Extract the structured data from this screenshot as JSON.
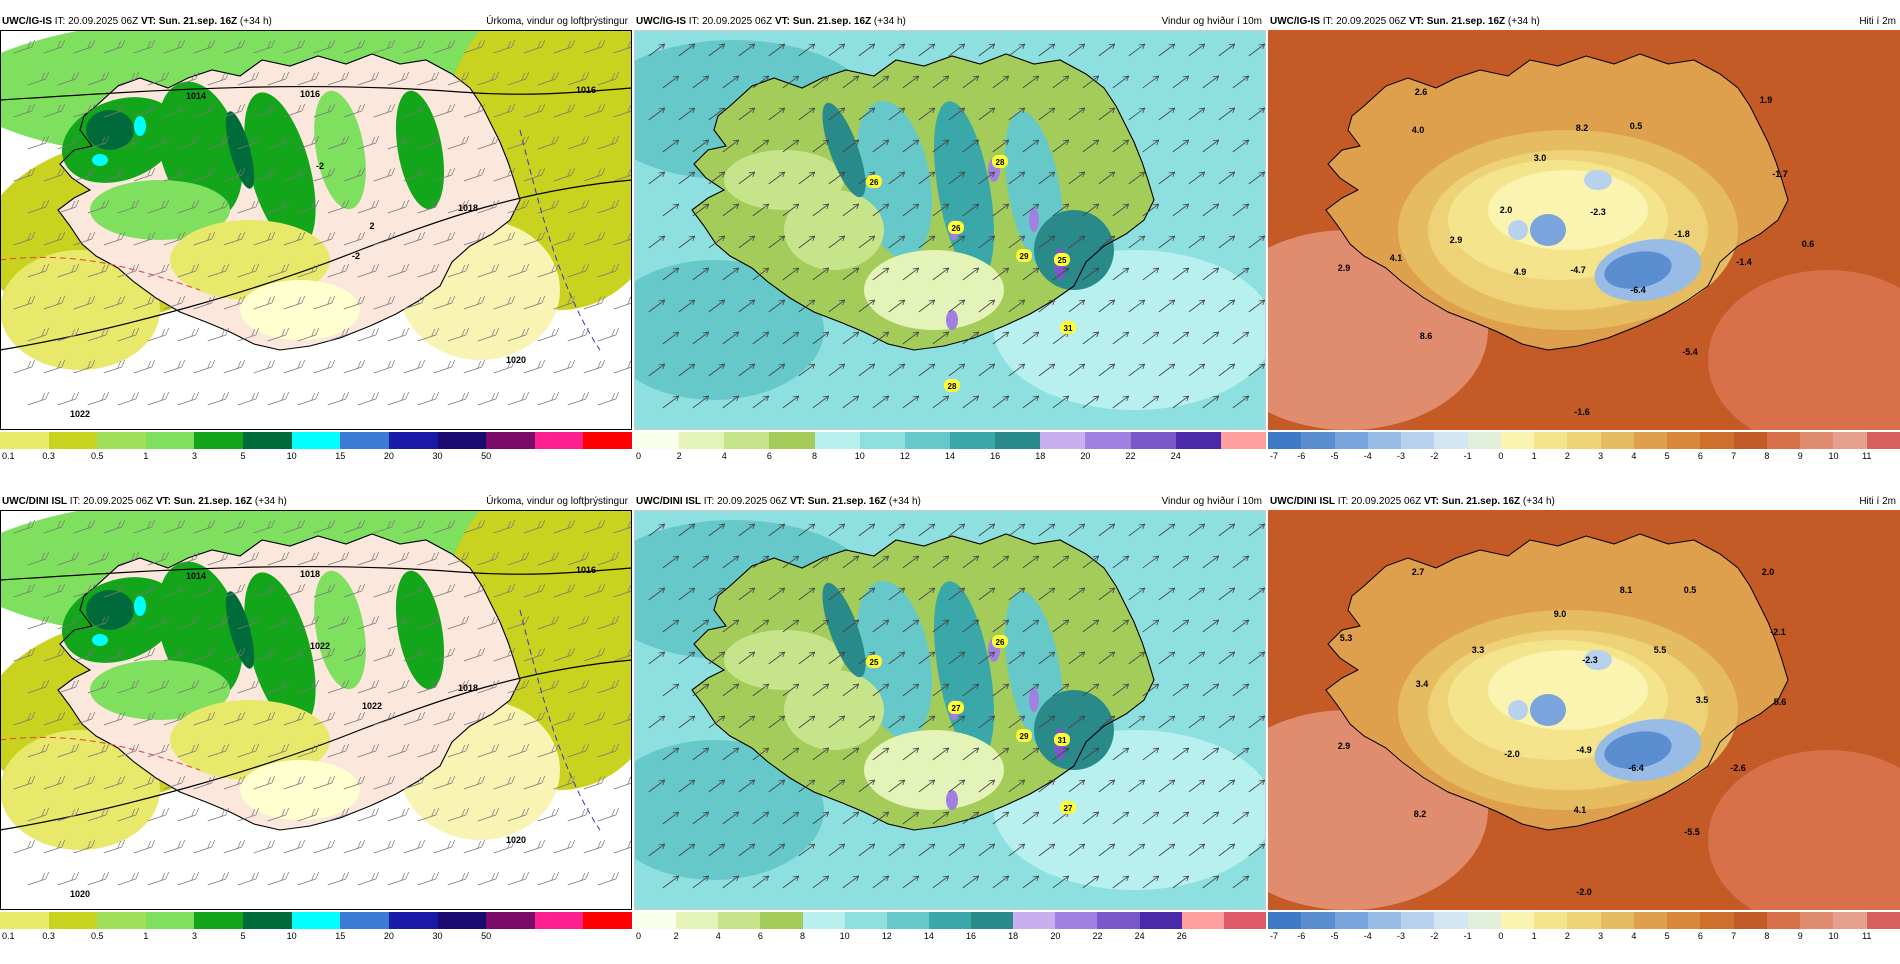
{
  "rows": [
    {
      "model": "UWC/IG-IS",
      "issue": "IT: 20.09.2025 06Z",
      "valid": "VT: Sun. 21.sep. 16Z",
      "lead": "(+34 h)"
    },
    {
      "model": "UWC/DINI ISL",
      "issue": "IT: 20.09.2025 06Z",
      "valid": "VT: Sun. 21.sep. 16Z",
      "lead": "(+34 h)"
    }
  ],
  "params": {
    "precip": "Úrkoma, vindur og loftþrýstingur",
    "wind": "Vindur og hviður í 10m",
    "temp": "Hiti í 2m"
  },
  "legends": {
    "precip": {
      "colors": [
        "#e8e86a",
        "#c9d21e",
        "#a2df5a",
        "#7ee05e",
        "#13a51a",
        "#006b3a",
        "#00ffff",
        "#3a7bd5",
        "#1a1aa8",
        "#1a0a70",
        "#7a0a6a",
        "#ff1f8f",
        "#ff0000"
      ],
      "ticks": [
        "0.1",
        "0.3",
        "0.5",
        "1",
        "3",
        "5",
        "10",
        "15",
        "20",
        "30",
        "50"
      ]
    },
    "wind_top": {
      "colors": [
        "#f8ffe8",
        "#e4f4b8",
        "#c6e48a",
        "#a3cc5a",
        "#b8f0f0",
        "#8ee0e0",
        "#66c8c8",
        "#3aa8a8",
        "#2a8a8a",
        "#c8b0f0",
        "#a080e0",
        "#7a58c8",
        "#4a2aa8",
        "#ff9e9e"
      ],
      "ticks": [
        "0",
        "2",
        "4",
        "6",
        "8",
        "10",
        "12",
        "14",
        "16",
        "18",
        "20",
        "22",
        "24"
      ]
    },
    "wind_bot": {
      "colors": [
        "#f8ffe8",
        "#e4f4b8",
        "#c6e48a",
        "#a3cc5a",
        "#b8f0f0",
        "#8ee0e0",
        "#66c8c8",
        "#3aa8a8",
        "#2a8a8a",
        "#c8b0f0",
        "#a080e0",
        "#7a58c8",
        "#4a2aa8",
        "#ff9e9e",
        "#e05a6a"
      ],
      "ticks": [
        "0",
        "2",
        "4",
        "6",
        "8",
        "10",
        "12",
        "14",
        "16",
        "18",
        "20",
        "22",
        "24",
        "26"
      ]
    },
    "temp": {
      "colors": [
        "#3f78c4",
        "#5a8ed0",
        "#7aa4dc",
        "#99bce6",
        "#b8d2ee",
        "#d2e6f4",
        "#e2eedc",
        "#faf4b0",
        "#f4e48c",
        "#eed278",
        "#e6bc60",
        "#dea04c",
        "#d8883a",
        "#ce702e",
        "#c45a26",
        "#d8704a",
        "#e08c6e",
        "#e6a090",
        "#d86060"
      ],
      "ticks": [
        "-7",
        "-6",
        "-5",
        "-4",
        "-3",
        "-2",
        "-1",
        "0",
        "1",
        "2",
        "3",
        "4",
        "5",
        "6",
        "7",
        "8",
        "9",
        "10",
        "11"
      ]
    }
  },
  "annotations": {
    "precip_top": [
      "1014",
      "1016",
      "1016",
      "1018",
      "1020",
      "1022",
      "-2",
      "2",
      "-2"
    ],
    "precip_bot": [
      "1014",
      "1016",
      "1018",
      "1018",
      "1020",
      "1020",
      "1022",
      "1022"
    ],
    "wind_top": [
      "26",
      "28",
      "26",
      "29",
      "25",
      "31",
      "28"
    ],
    "wind_bot": [
      "25",
      "26",
      "27",
      "29",
      "31",
      "27"
    ],
    "temp_top": [
      "2.6",
      "4.0",
      "3.0",
      "8.2",
      "0.5",
      "1.9",
      "2.0",
      "-2.3",
      "-1.7",
      "4.1",
      "2.9",
      "-1.8",
      "0.6",
      "2.9",
      "4.9",
      "-4.7",
      "-1.4",
      "-6.4",
      "8.6",
      "-5.4",
      "-1.6"
    ],
    "temp_bot": [
      "2.7",
      "9.0",
      "8.1",
      "0.5",
      "2.0",
      "5.3",
      "3.3",
      "-2.3",
      "5.5",
      "-2.1",
      "3.4",
      "3.5",
      "5.6",
      "2.9",
      "-2.0",
      "-4.9",
      "-6.4",
      "-2.6",
      "8.2",
      "4.1",
      "-5.5",
      "-2.0"
    ]
  }
}
